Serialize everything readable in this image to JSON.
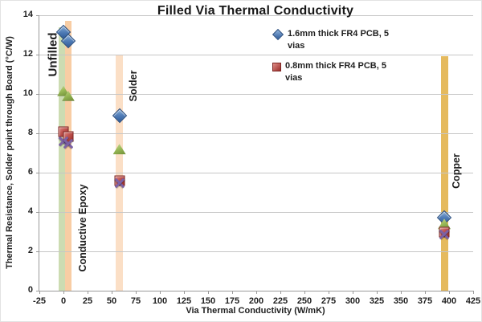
{
  "title": "Filled Via Thermal Conductivity",
  "legend": [
    {
      "label": "1.6mm thick FR4 PCB, 5 vias",
      "marker": "diamond",
      "color": "#4F81BD"
    },
    {
      "label": "0.8mm thick FR4 PCB, 5 vias",
      "marker": "square",
      "color": "#C0504D"
    }
  ],
  "chart_data": {
    "type": "scatter",
    "title": "Filled Via Thermal Conductivity",
    "xlabel": "Via Thermal Conductivity (W/mK)",
    "ylabel": "Thermal Resistance, Solder point through Board (°C/W)",
    "xlim": [
      -25,
      425
    ],
    "ylim": [
      0,
      14
    ],
    "x_ticks": [
      -25,
      0,
      25,
      50,
      75,
      100,
      125,
      150,
      175,
      200,
      225,
      250,
      275,
      300,
      325,
      350,
      375,
      400,
      425
    ],
    "y_ticks": [
      0,
      2,
      4,
      6,
      8,
      10,
      12,
      14
    ],
    "grid": "horizontal",
    "legend_position": "top-right-inside",
    "series": [
      {
        "name": "1.6mm thick FR4 PCB, 5 vias",
        "marker": "diamond",
        "color": "#4F81BD",
        "points": [
          [
            0,
            13.15
          ],
          [
            5,
            12.7
          ],
          [
            58,
            8.9
          ],
          [
            395,
            3.7
          ]
        ]
      },
      {
        "name": "unlabeled-triangle-series",
        "marker": "triangle",
        "color": "#9BBB59",
        "points": [
          [
            0,
            10.15
          ],
          [
            5,
            9.9
          ],
          [
            58,
            7.2
          ],
          [
            395,
            3.4
          ]
        ]
      },
      {
        "name": "0.8mm thick FR4 PCB, 5 vias",
        "marker": "square",
        "color": "#C0504D",
        "points": [
          [
            0,
            8.1
          ],
          [
            5,
            7.85
          ],
          [
            58,
            5.6
          ],
          [
            395,
            3.0
          ]
        ]
      },
      {
        "name": "unlabeled-x-series",
        "marker": "x",
        "color": "#8064A2",
        "points": [
          [
            0,
            7.6
          ],
          [
            5,
            7.45
          ],
          [
            58,
            5.45
          ],
          [
            395,
            2.85
          ]
        ]
      }
    ],
    "bands": [
      {
        "label": "Unfilled",
        "x": -1.5,
        "width": 6.5,
        "top": 13.4,
        "color": "#ccdcb2"
      },
      {
        "label": "Conductive Epoxy",
        "x": 5,
        "width": 6.5,
        "top": 13.7,
        "color": "#f8cda4"
      },
      {
        "label": "Solder",
        "x": 58,
        "width": 7,
        "top": 12.0,
        "color": "#fbdfc6"
      },
      {
        "label": "Copper",
        "x": 395,
        "width": 7.5,
        "top": 11.9,
        "color": "#e5ba5e"
      }
    ],
    "band_labels": [
      {
        "text": "Unfilled",
        "x": -11,
        "y": 12.0,
        "size": 15
      },
      {
        "text": "Conductive Epoxy",
        "x": 20,
        "y": 3.2,
        "size": 12.5
      },
      {
        "text": "Solder",
        "x": 72.5,
        "y": 10.4,
        "size": 12.5
      },
      {
        "text": "Copper",
        "x": 407.5,
        "y": 6.1,
        "size": 12.5
      }
    ]
  }
}
